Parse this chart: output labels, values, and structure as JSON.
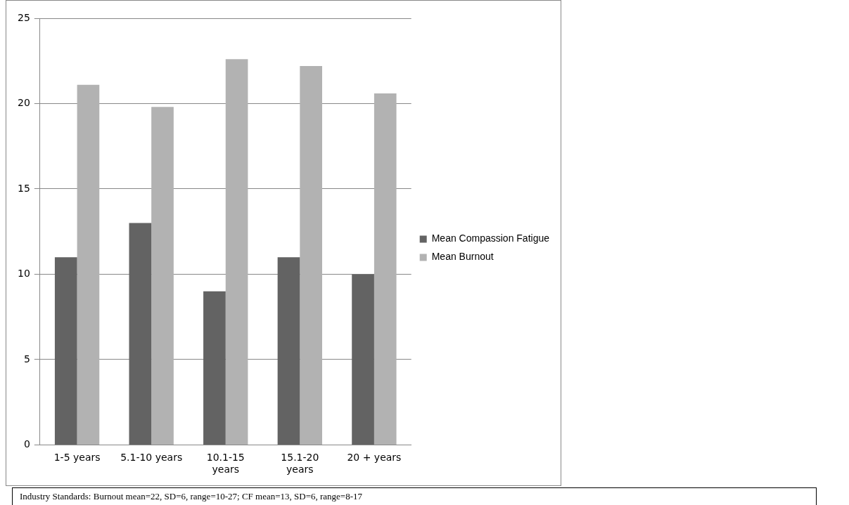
{
  "chart_data": {
    "type": "bar",
    "categories": [
      "1-5 years",
      "5.1-10 years",
      "10.1-15 years",
      "15.1-20 years",
      "20 + years"
    ],
    "series": [
      {
        "name": "Mean Compassion Fatigue",
        "color": "#636363",
        "values": [
          11,
          13,
          9,
          11,
          10
        ]
      },
      {
        "name": "Mean Burnout",
        "color": "#b2b2b2",
        "values": [
          21.1,
          19.8,
          22.6,
          22.2,
          20.6
        ]
      }
    ],
    "ylim": [
      0,
      25
    ],
    "yticks": [
      0,
      5,
      10,
      15,
      20,
      25
    ],
    "grid": "y",
    "legend": "right",
    "annotations": [
      "Industry Standards: Burnout mean=22, SD=6, range=10-27; CF mean=13, SD=6, range=8-17"
    ]
  }
}
